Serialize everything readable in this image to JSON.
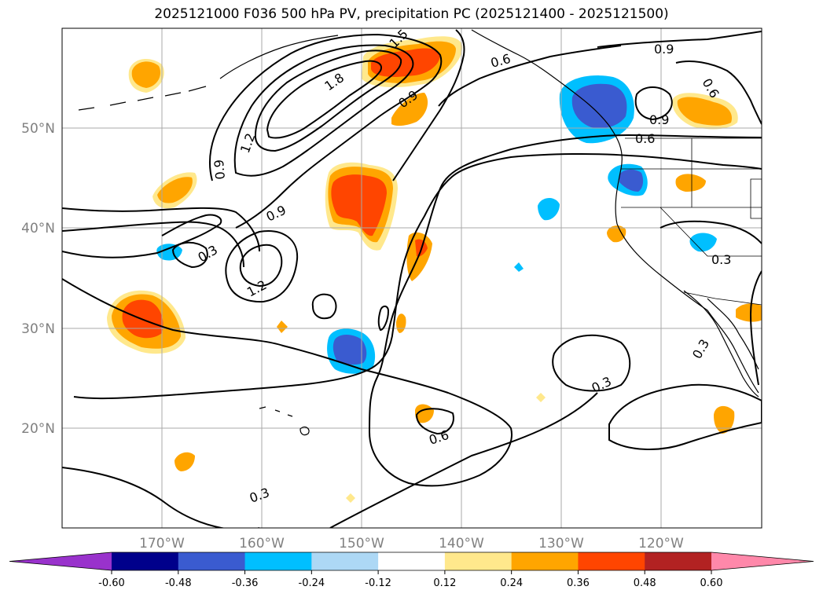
{
  "title": "2025121000 F036 500 hPa PV, precipitation PC (2025121400 - 2025121500)",
  "map": {
    "projection": "PlateCarree",
    "extent": {
      "lon": [
        -180,
        -110
      ],
      "lat": [
        10,
        60
      ]
    },
    "lon_ticks": [
      "170°W",
      "160°W",
      "150°W",
      "140°W",
      "130°W",
      "120°W"
    ],
    "lat_ticks": [
      "50°N",
      "40°N",
      "30°N",
      "20°N"
    ],
    "gridlines": true
  },
  "pv_contours": {
    "color": "#000000",
    "labels": [
      "0.3",
      "0.3",
      "0.3",
      "0.3",
      "0.3",
      "0.6",
      "0.6",
      "0.6",
      "0.6",
      "0.9",
      "0.9",
      "0.9",
      "0.9",
      "0.9",
      "1.2",
      "1.2",
      "1.5",
      "1.8"
    ]
  },
  "colorbar": {
    "extend": "both",
    "levels": [
      "-0.60",
      "-0.48",
      "-0.36",
      "-0.24",
      "-0.12",
      "0.12",
      "0.24",
      "0.36",
      "0.48",
      "0.60"
    ],
    "colors": [
      "#9932cc",
      "#00008b",
      "#3a5bd0",
      "#00bfff",
      "#add8f5",
      "#ffffff",
      "#ffe88c",
      "#ffa500",
      "#ff4500",
      "#b22222",
      "#ff88aa"
    ]
  },
  "precip_colors": {
    "pos_low": "#ffe88c",
    "pos_mid": "#ffa500",
    "pos_high": "#ff4500",
    "neg_low": "#add8f5",
    "neg_mid": "#00bfff",
    "neg_high": "#3a5bd0"
  }
}
